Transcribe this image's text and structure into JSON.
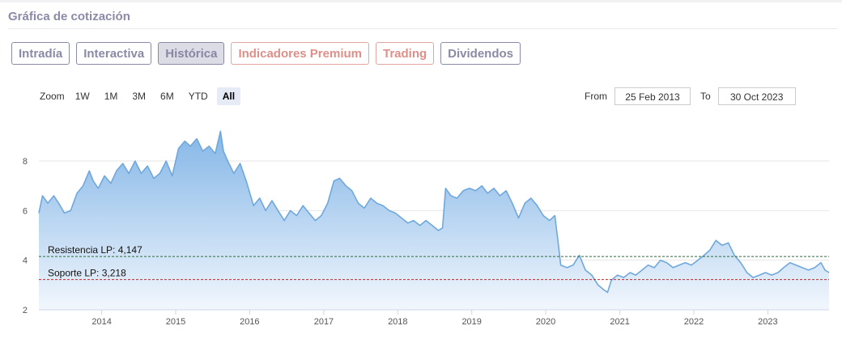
{
  "header": {
    "title": "Gráfica de cotización"
  },
  "tabs": [
    {
      "label": "Intradía",
      "variant": "normal"
    },
    {
      "label": "Interactiva",
      "variant": "normal"
    },
    {
      "label": "Histórica",
      "variant": "active"
    },
    {
      "label": "Indicadores Premium",
      "variant": "premium"
    },
    {
      "label": "Trading",
      "variant": "premium"
    },
    {
      "label": "Dividendos",
      "variant": "normal"
    }
  ],
  "zoom": {
    "label": "Zoom",
    "buttons": [
      "1W",
      "1M",
      "3M",
      "6M",
      "YTD",
      "All"
    ],
    "selected": "All"
  },
  "range": {
    "from_label": "From",
    "from_value": "25 Feb 2013",
    "to_label": "To",
    "to_value": "30 Oct 2023"
  },
  "colors": {
    "line": "#6fa8dc",
    "fill_top": "#7fb3e6",
    "fill_bottom": "#f2f7fd",
    "resistance": "#2e6b3e",
    "support": "#c62828"
  },
  "chart_data": {
    "type": "area",
    "x_start": "2013-02-25",
    "x_end": "2023-10-30",
    "ylim": [
      2,
      9.6
    ],
    "y_ticks": [
      2,
      4,
      6,
      8
    ],
    "x_tick_labels": [
      "2014",
      "2015",
      "2016",
      "2017",
      "2018",
      "2019",
      "2020",
      "2021",
      "2022",
      "2023"
    ],
    "grid": true,
    "series": [
      {
        "points": [
          [
            "2013-02-25",
            5.9
          ],
          [
            "2013-03-15",
            6.6
          ],
          [
            "2013-04-10",
            6.3
          ],
          [
            "2013-05-10",
            6.6
          ],
          [
            "2013-06-10",
            6.2
          ],
          [
            "2013-07-01",
            5.9
          ],
          [
            "2013-08-01",
            6.0
          ],
          [
            "2013-09-01",
            6.7
          ],
          [
            "2013-10-01",
            7.0
          ],
          [
            "2013-11-01",
            7.6
          ],
          [
            "2013-11-20",
            7.2
          ],
          [
            "2013-12-15",
            6.9
          ],
          [
            "2014-01-15",
            7.4
          ],
          [
            "2014-02-15",
            7.1
          ],
          [
            "2014-03-15",
            7.6
          ],
          [
            "2014-04-15",
            7.9
          ],
          [
            "2014-05-15",
            7.5
          ],
          [
            "2014-06-15",
            8.0
          ],
          [
            "2014-07-15",
            7.5
          ],
          [
            "2014-08-15",
            7.8
          ],
          [
            "2014-09-15",
            7.3
          ],
          [
            "2014-10-15",
            7.5
          ],
          [
            "2014-11-15",
            8.0
          ],
          [
            "2014-12-15",
            7.4
          ],
          [
            "2015-01-15",
            8.5
          ],
          [
            "2015-02-15",
            8.8
          ],
          [
            "2015-03-15",
            8.6
          ],
          [
            "2015-04-15",
            8.9
          ],
          [
            "2015-05-15",
            8.4
          ],
          [
            "2015-06-15",
            8.6
          ],
          [
            "2015-07-15",
            8.3
          ],
          [
            "2015-08-10",
            9.2
          ],
          [
            "2015-08-25",
            8.4
          ],
          [
            "2015-09-15",
            8.0
          ],
          [
            "2015-10-15",
            7.5
          ],
          [
            "2015-11-15",
            7.9
          ],
          [
            "2015-12-15",
            7.2
          ],
          [
            "2016-01-20",
            6.2
          ],
          [
            "2016-02-20",
            6.5
          ],
          [
            "2016-03-20",
            6.0
          ],
          [
            "2016-04-20",
            6.4
          ],
          [
            "2016-05-20",
            6.0
          ],
          [
            "2016-06-20",
            5.6
          ],
          [
            "2016-07-20",
            6.0
          ],
          [
            "2016-08-20",
            5.8
          ],
          [
            "2016-09-20",
            6.2
          ],
          [
            "2016-10-20",
            5.9
          ],
          [
            "2016-11-20",
            5.6
          ],
          [
            "2016-12-20",
            5.8
          ],
          [
            "2017-01-20",
            6.3
          ],
          [
            "2017-02-20",
            7.2
          ],
          [
            "2017-03-20",
            7.3
          ],
          [
            "2017-04-20",
            7.0
          ],
          [
            "2017-05-20",
            6.8
          ],
          [
            "2017-06-20",
            6.3
          ],
          [
            "2017-07-20",
            6.1
          ],
          [
            "2017-08-20",
            6.5
          ],
          [
            "2017-09-20",
            6.3
          ],
          [
            "2017-10-20",
            6.2
          ],
          [
            "2017-11-20",
            6.0
          ],
          [
            "2017-12-20",
            5.9
          ],
          [
            "2018-01-20",
            5.7
          ],
          [
            "2018-02-20",
            5.5
          ],
          [
            "2018-03-20",
            5.6
          ],
          [
            "2018-04-20",
            5.4
          ],
          [
            "2018-05-20",
            5.6
          ],
          [
            "2018-06-20",
            5.4
          ],
          [
            "2018-07-20",
            5.2
          ],
          [
            "2018-08-10",
            5.3
          ],
          [
            "2018-08-25",
            6.9
          ],
          [
            "2018-09-20",
            6.6
          ],
          [
            "2018-10-20",
            6.5
          ],
          [
            "2018-11-20",
            6.8
          ],
          [
            "2018-12-20",
            6.9
          ],
          [
            "2019-01-20",
            6.8
          ],
          [
            "2019-02-20",
            7.0
          ],
          [
            "2019-03-20",
            6.7
          ],
          [
            "2019-04-20",
            6.9
          ],
          [
            "2019-05-20",
            6.6
          ],
          [
            "2019-06-20",
            6.8
          ],
          [
            "2019-07-20",
            6.3
          ],
          [
            "2019-08-20",
            5.7
          ],
          [
            "2019-09-20",
            6.3
          ],
          [
            "2019-10-20",
            6.5
          ],
          [
            "2019-11-20",
            6.2
          ],
          [
            "2019-12-20",
            5.8
          ],
          [
            "2020-01-20",
            5.6
          ],
          [
            "2020-02-15",
            5.8
          ],
          [
            "2020-03-01",
            4.8
          ],
          [
            "2020-03-15",
            3.8
          ],
          [
            "2020-04-15",
            3.7
          ],
          [
            "2020-05-15",
            3.8
          ],
          [
            "2020-06-15",
            4.2
          ],
          [
            "2020-07-15",
            3.6
          ],
          [
            "2020-08-15",
            3.4
          ],
          [
            "2020-09-15",
            3.0
          ],
          [
            "2020-10-15",
            2.8
          ],
          [
            "2020-11-01",
            2.7
          ],
          [
            "2020-11-20",
            3.2
          ],
          [
            "2020-12-20",
            3.4
          ],
          [
            "2021-01-20",
            3.3
          ],
          [
            "2021-02-20",
            3.5
          ],
          [
            "2021-03-20",
            3.4
          ],
          [
            "2021-04-20",
            3.6
          ],
          [
            "2021-05-20",
            3.8
          ],
          [
            "2021-06-20",
            3.7
          ],
          [
            "2021-07-20",
            4.0
          ],
          [
            "2021-08-20",
            3.9
          ],
          [
            "2021-09-20",
            3.7
          ],
          [
            "2021-10-20",
            3.8
          ],
          [
            "2021-11-20",
            3.9
          ],
          [
            "2021-12-20",
            3.8
          ],
          [
            "2022-01-20",
            4.0
          ],
          [
            "2022-02-20",
            4.2
          ],
          [
            "2022-03-20",
            4.4
          ],
          [
            "2022-04-20",
            4.8
          ],
          [
            "2022-05-20",
            4.6
          ],
          [
            "2022-06-20",
            4.7
          ],
          [
            "2022-07-20",
            4.2
          ],
          [
            "2022-08-20",
            3.9
          ],
          [
            "2022-09-20",
            3.5
          ],
          [
            "2022-10-20",
            3.3
          ],
          [
            "2022-11-20",
            3.4
          ],
          [
            "2022-12-20",
            3.5
          ],
          [
            "2023-01-20",
            3.4
          ],
          [
            "2023-02-20",
            3.5
          ],
          [
            "2023-03-20",
            3.7
          ],
          [
            "2023-04-20",
            3.9
          ],
          [
            "2023-05-20",
            3.8
          ],
          [
            "2023-06-20",
            3.7
          ],
          [
            "2023-07-20",
            3.6
          ],
          [
            "2023-08-20",
            3.7
          ],
          [
            "2023-09-20",
            3.9
          ],
          [
            "2023-10-10",
            3.6
          ],
          [
            "2023-10-30",
            3.5
          ]
        ]
      }
    ],
    "annotations": [
      {
        "type": "hline",
        "label": "Resistencia LP: 4,147",
        "value": 4.147,
        "style": "dashed",
        "color_key": "resistance"
      },
      {
        "type": "hline",
        "label": "Soporte LP: 3,218",
        "value": 3.218,
        "style": "dashed",
        "color_key": "support"
      }
    ]
  }
}
